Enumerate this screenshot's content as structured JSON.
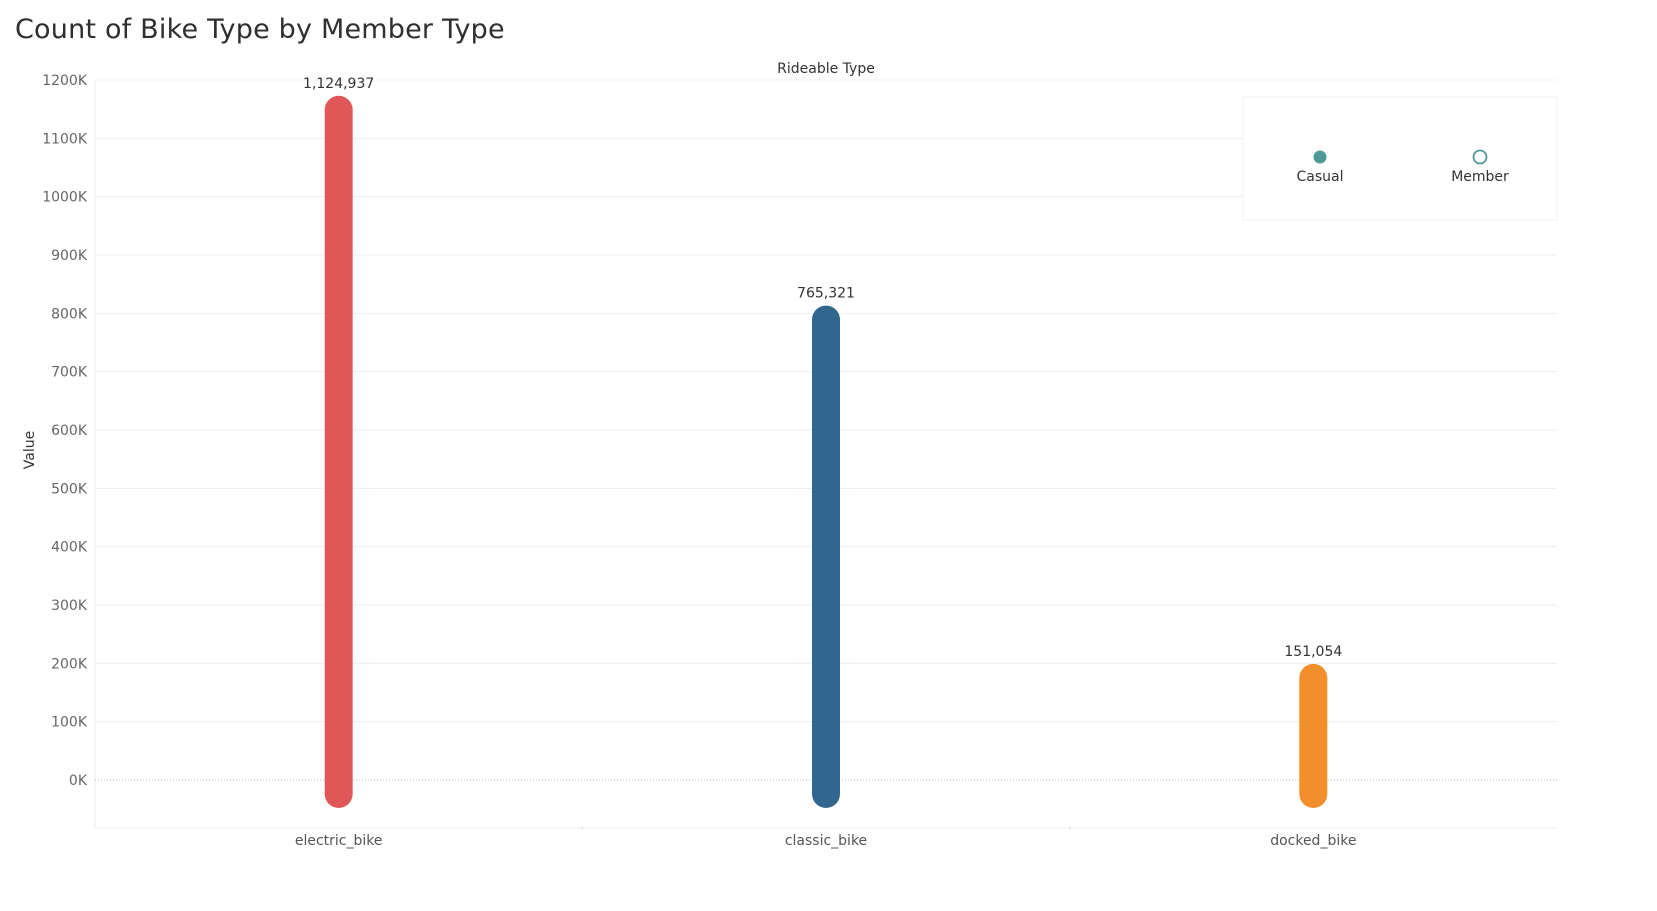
{
  "chart_data": {
    "type": "bar",
    "title": "Count of Bike Type by Member Type",
    "column_header": "Rideable Type",
    "ylabel": "Value",
    "xlabel": "",
    "categories": [
      "electric_bike",
      "classic_bike",
      "docked_bike"
    ],
    "values": [
      1124937,
      765321,
      151054
    ],
    "value_labels": [
      "1,124,937",
      "765,321",
      "151,054"
    ],
    "bar_colors": [
      "#e15759",
      "#31678e",
      "#f28e2b"
    ],
    "ylim": [
      0,
      1200000
    ],
    "yticks": [
      0,
      100000,
      200000,
      300000,
      400000,
      500000,
      600000,
      700000,
      800000,
      900000,
      1000000,
      1100000,
      1200000
    ],
    "ytick_labels": [
      "0K",
      "100K",
      "200K",
      "300K",
      "400K",
      "500K",
      "600K",
      "700K",
      "800K",
      "900K",
      "1000K",
      "1100K",
      "1200K"
    ],
    "grid": true,
    "legend": {
      "placement": "top-right",
      "items": [
        {
          "label": "Casual",
          "marker": "filled-circle",
          "color": "#4e9a96"
        },
        {
          "label": "Member",
          "marker": "open-circle",
          "color": "#4e9a96"
        }
      ]
    }
  }
}
